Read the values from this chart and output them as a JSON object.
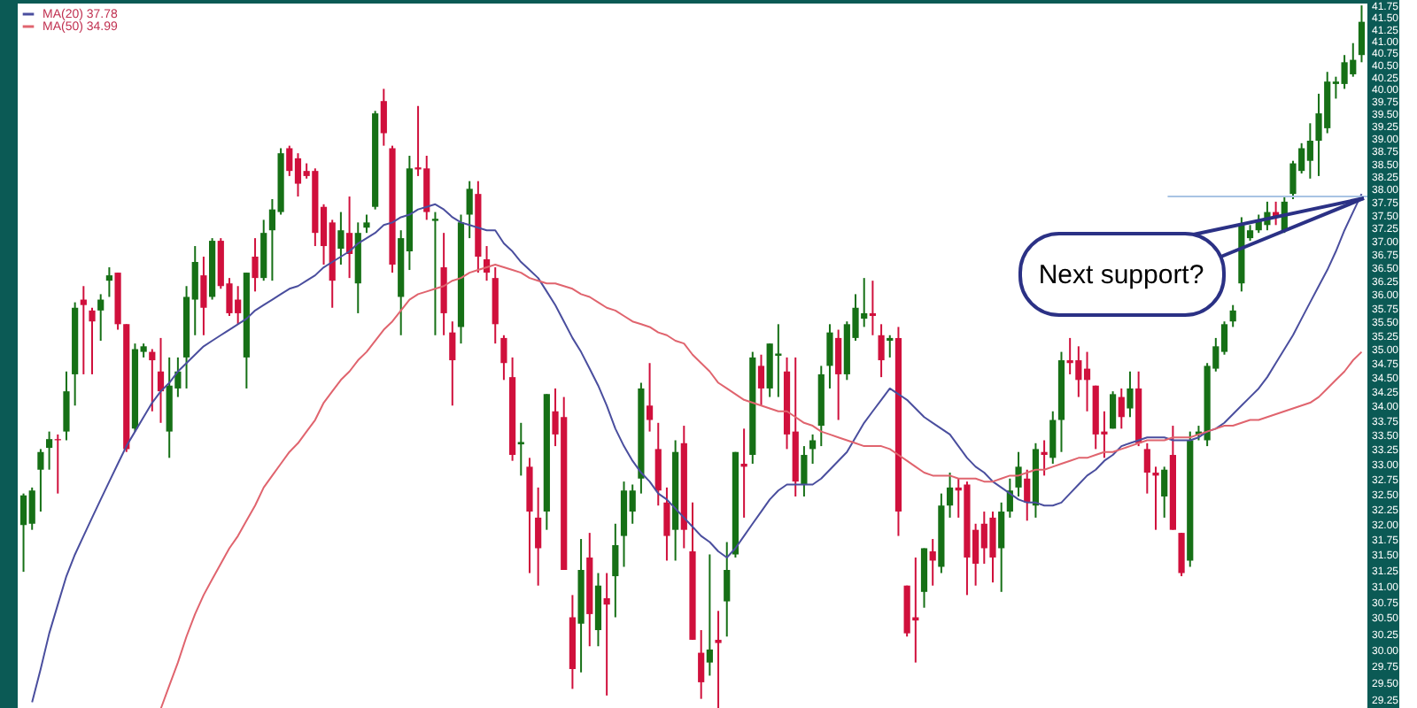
{
  "chart_data": {
    "type": "candlestick",
    "categories": [
      null,
      null,
      null,
      null,
      null,
      null,
      null,
      null,
      null,
      null,
      null,
      null,
      null,
      null,
      null,
      null,
      null,
      null,
      null,
      null,
      null,
      null,
      null,
      null,
      null,
      null,
      null,
      null,
      null,
      null,
      null,
      null,
      null,
      null,
      null,
      null,
      null,
      null,
      null,
      null,
      null,
      null,
      null,
      null,
      null,
      null,
      null,
      null,
      null,
      null,
      null,
      null,
      null,
      null,
      null,
      null,
      null,
      null,
      null,
      null,
      null,
      null,
      null,
      null,
      null,
      null,
      null,
      null,
      null,
      null,
      null,
      null,
      null,
      null,
      null,
      null,
      null,
      null,
      null,
      null,
      null,
      null,
      null,
      null,
      null,
      null,
      null,
      null,
      null,
      null,
      null,
      null,
      null,
      null,
      null,
      null,
      null,
      null,
      null,
      null,
      null,
      null,
      null,
      null,
      null,
      null,
      null,
      null,
      null,
      null,
      null,
      null,
      null,
      null,
      null,
      null,
      null,
      null,
      null,
      null,
      null,
      null,
      null,
      null,
      null,
      null,
      null,
      null,
      null,
      null,
      null,
      null,
      null,
      null,
      null,
      null,
      null,
      null,
      null,
      null,
      null,
      null,
      null,
      null,
      null,
      null,
      null,
      null,
      null,
      null,
      null,
      null,
      null,
      null,
      null,
      null,
      null
    ],
    "ohlc": [
      [
        31.98,
        32.5,
        31.22,
        32.47
      ],
      [
        32.0,
        32.6,
        31.9,
        32.55
      ],
      [
        32.9,
        33.25,
        32.2,
        33.2
      ],
      [
        33.27,
        33.55,
        32.9,
        33.42
      ],
      [
        33.42,
        33.5,
        32.5,
        33.4
      ],
      [
        33.55,
        34.6,
        33.4,
        34.25
      ],
      [
        34.55,
        35.85,
        34.0,
        35.75
      ],
      [
        35.9,
        36.15,
        34.55,
        35.8
      ],
      [
        35.7,
        35.75,
        34.55,
        35.5
      ],
      [
        35.7,
        36.0,
        35.15,
        35.9
      ],
      [
        36.25,
        36.5,
        35.95,
        36.35
      ],
      [
        36.4,
        36.4,
        35.35,
        35.45
      ],
      [
        35.45,
        35.45,
        33.2,
        33.25
      ],
      [
        33.6,
        35.1,
        33.55,
        35.0
      ],
      [
        34.95,
        35.1,
        34.85,
        35.05
      ],
      [
        34.95,
        35.0,
        33.9,
        34.8
      ],
      [
        34.6,
        35.2,
        33.7,
        34.25
      ],
      [
        33.55,
        34.85,
        33.1,
        34.35
      ],
      [
        34.3,
        34.85,
        34.15,
        34.6
      ],
      [
        34.85,
        36.15,
        34.3,
        35.95
      ],
      [
        35.9,
        36.9,
        35.25,
        36.6
      ],
      [
        36.35,
        36.7,
        35.25,
        35.75
      ],
      [
        35.95,
        37.05,
        35.9,
        37.0
      ],
      [
        37.0,
        37.05,
        36.1,
        36.15
      ],
      [
        36.2,
        36.3,
        35.6,
        35.65
      ],
      [
        35.9,
        36.15,
        35.45,
        35.65
      ],
      [
        34.85,
        36.4,
        34.3,
        36.4
      ],
      [
        36.7,
        37.05,
        36.05,
        36.3
      ],
      [
        36.3,
        37.4,
        36.25,
        37.15
      ],
      [
        37.2,
        37.8,
        36.25,
        37.6
      ],
      [
        37.55,
        38.8,
        37.5,
        38.7
      ],
      [
        38.8,
        38.85,
        38.25,
        38.35
      ],
      [
        38.6,
        38.7,
        37.85,
        38.1
      ],
      [
        38.35,
        38.5,
        38.2,
        38.25
      ],
      [
        38.35,
        38.4,
        36.9,
        37.15
      ],
      [
        37.65,
        37.7,
        36.55,
        36.9
      ],
      [
        37.35,
        37.4,
        35.75,
        36.25
      ],
      [
        36.85,
        37.55,
        36.55,
        37.2
      ],
      [
        37.15,
        37.85,
        36.3,
        36.75
      ],
      [
        36.2,
        37.35,
        35.65,
        37.15
      ],
      [
        37.25,
        37.5,
        37.15,
        37.35
      ],
      [
        37.65,
        39.55,
        37.6,
        39.5
      ],
      [
        39.75,
        40.0,
        38.85,
        39.1
      ],
      [
        38.8,
        38.85,
        36.4,
        36.55
      ],
      [
        35.95,
        37.2,
        35.25,
        37.05
      ],
      [
        36.8,
        38.65,
        36.45,
        38.4
      ],
      [
        38.42,
        39.65,
        38.25,
        38.38
      ],
      [
        38.4,
        38.65,
        37.4,
        37.55
      ],
      [
        37.38,
        37.55,
        35.25,
        37.42
      ],
      [
        36.5,
        37.15,
        35.25,
        35.65
      ],
      [
        35.3,
        35.5,
        34.0,
        34.8
      ],
      [
        35.4,
        37.5,
        35.1,
        37.35
      ],
      [
        37.5,
        38.15,
        37.05,
        38.0
      ],
      [
        37.9,
        38.15,
        36.4,
        36.7
      ],
      [
        36.65,
        36.9,
        36.25,
        36.4
      ],
      [
        36.3,
        36.5,
        35.1,
        35.45
      ],
      [
        35.2,
        35.25,
        34.45,
        34.75
      ],
      [
        34.5,
        34.85,
        33.05,
        33.15
      ],
      [
        33.33,
        33.7,
        32.8,
        33.37
      ],
      [
        32.95,
        33.1,
        31.2,
        32.2
      ],
      [
        32.1,
        32.6,
        31.0,
        31.6
      ],
      [
        32.2,
        34.2,
        31.9,
        34.2
      ],
      [
        33.9,
        34.3,
        33.3,
        33.5
      ],
      [
        33.8,
        34.15,
        31.25,
        31.25
      ],
      [
        30.5,
        30.85,
        29.4,
        29.7
      ],
      [
        30.4,
        31.75,
        29.65,
        31.25
      ],
      [
        31.45,
        31.85,
        30.05,
        30.55
      ],
      [
        30.3,
        31.2,
        30.05,
        31.0
      ],
      [
        30.8,
        31.2,
        29.3,
        30.7
      ],
      [
        31.15,
        32.0,
        30.5,
        31.65
      ],
      [
        31.8,
        32.7,
        31.3,
        32.55
      ],
      [
        32.2,
        32.65,
        32.0,
        32.55
      ],
      [
        32.75,
        34.4,
        32.5,
        34.3
      ],
      [
        34.0,
        34.75,
        33.55,
        33.75
      ],
      [
        33.25,
        33.7,
        32.3,
        32.55
      ],
      [
        32.35,
        32.6,
        31.4,
        31.8
      ],
      [
        31.9,
        33.4,
        31.4,
        33.2
      ],
      [
        33.35,
        33.65,
        31.6,
        31.9
      ],
      [
        31.55,
        32.35,
        30.15,
        30.15
      ],
      [
        29.95,
        30.3,
        29.25,
        29.5
      ],
      [
        29.8,
        31.5,
        29.6,
        30.0
      ],
      [
        30.15,
        30.6,
        29.1,
        30.1
      ],
      [
        30.75,
        31.7,
        30.2,
        31.25
      ],
      [
        31.5,
        33.2,
        31.45,
        33.2
      ],
      [
        33.0,
        33.6,
        32.1,
        32.95
      ],
      [
        33.15,
        34.95,
        33.0,
        34.85
      ],
      [
        34.7,
        34.9,
        34.0,
        34.3
      ],
      [
        34.3,
        35.1,
        34.15,
        35.1
      ],
      [
        34.88,
        35.45,
        34.15,
        34.92
      ],
      [
        34.6,
        34.85,
        33.25,
        33.5
      ],
      [
        33.55,
        34.85,
        32.45,
        32.7
      ],
      [
        32.65,
        33.3,
        32.45,
        33.15
      ],
      [
        33.25,
        33.5,
        33.0,
        33.4
      ],
      [
        33.65,
        34.7,
        33.3,
        34.55
      ],
      [
        34.7,
        35.45,
        34.3,
        35.3
      ],
      [
        35.2,
        35.35,
        33.75,
        34.55
      ],
      [
        34.55,
        35.5,
        34.45,
        35.45
      ],
      [
        35.2,
        36.0,
        35.15,
        35.75
      ],
      [
        35.55,
        36.3,
        35.4,
        35.65
      ],
      [
        35.65,
        36.25,
        35.25,
        35.6
      ],
      [
        35.25,
        35.45,
        34.5,
        34.8
      ],
      [
        35.15,
        35.25,
        34.85,
        35.2
      ],
      [
        35.2,
        35.4,
        31.8,
        32.2
      ],
      [
        31.0,
        31.0,
        30.2,
        30.25
      ],
      [
        30.5,
        31.45,
        29.8,
        30.45
      ],
      [
        30.9,
        31.6,
        30.65,
        31.6
      ],
      [
        31.55,
        31.75,
        31.0,
        31.4
      ],
      [
        31.3,
        32.5,
        31.2,
        32.3
      ],
      [
        32.3,
        32.85,
        32.1,
        32.6
      ],
      [
        32.6,
        32.75,
        32.1,
        32.55
      ],
      [
        32.65,
        32.7,
        30.85,
        31.45
      ],
      [
        31.9,
        32.0,
        31.0,
        31.35
      ],
      [
        32.0,
        32.2,
        31.35,
        31.6
      ],
      [
        32.1,
        32.2,
        31.05,
        31.45
      ],
      [
        31.6,
        32.35,
        30.9,
        32.2
      ],
      [
        32.2,
        32.75,
        32.1,
        32.55
      ],
      [
        32.6,
        33.2,
        32.45,
        32.95
      ],
      [
        32.75,
        32.9,
        32.05,
        32.35
      ],
      [
        32.3,
        33.35,
        32.1,
        33.25
      ],
      [
        33.2,
        33.4,
        32.8,
        33.15
      ],
      [
        33.1,
        33.9,
        33.0,
        33.75
      ],
      [
        33.75,
        34.95,
        33.2,
        34.8
      ],
      [
        34.8,
        35.2,
        34.55,
        34.75
      ],
      [
        34.8,
        35.05,
        34.15,
        34.45
      ],
      [
        34.65,
        34.95,
        33.9,
        34.45
      ],
      [
        34.35,
        34.35,
        33.25,
        33.5
      ],
      [
        33.55,
        33.9,
        33.1,
        33.5
      ],
      [
        33.6,
        34.25,
        33.6,
        34.2
      ],
      [
        34.15,
        34.3,
        33.6,
        33.8
      ],
      [
        33.95,
        34.6,
        33.8,
        34.3
      ],
      [
        34.3,
        34.6,
        33.3,
        33.35
      ],
      [
        33.25,
        33.35,
        32.5,
        32.85
      ],
      [
        32.85,
        32.95,
        31.9,
        32.8
      ],
      [
        32.45,
        32.95,
        32.1,
        32.9
      ],
      [
        33.15,
        33.65,
        31.9,
        31.9
      ],
      [
        31.85,
        31.85,
        31.15,
        31.2
      ],
      [
        31.4,
        33.55,
        31.3,
        33.4
      ],
      [
        33.5,
        33.65,
        33.4,
        33.55
      ],
      [
        33.4,
        34.75,
        33.3,
        34.7
      ],
      [
        34.65,
        35.2,
        34.6,
        35.05
      ],
      [
        34.95,
        35.5,
        34.9,
        35.45
      ],
      [
        35.5,
        35.8,
        35.4,
        35.7
      ],
      [
        36.2,
        37.45,
        36.05,
        37.3
      ],
      [
        37.05,
        37.3,
        37.0,
        37.2
      ],
      [
        37.2,
        37.5,
        37.15,
        37.4
      ],
      [
        37.3,
        37.75,
        37.2,
        37.55
      ],
      [
        37.55,
        37.75,
        37.3,
        37.45
      ],
      [
        37.2,
        37.85,
        37.15,
        37.75
      ],
      [
        37.9,
        38.55,
        37.8,
        38.5
      ],
      [
        38.35,
        38.9,
        38.3,
        38.8
      ],
      [
        38.55,
        39.3,
        38.2,
        38.95
      ],
      [
        38.95,
        39.9,
        38.25,
        39.5
      ],
      [
        39.2,
        40.35,
        39.1,
        40.15
      ],
      [
        40.1,
        40.25,
        39.8,
        40.15
      ],
      [
        40.1,
        40.7,
        40.0,
        40.55
      ],
      [
        40.3,
        40.95,
        40.25,
        40.6
      ],
      [
        40.7,
        41.75,
        40.55,
        41.4
      ]
    ],
    "colors": [
      "#167016",
      "#167016",
      "#167016",
      "#167016",
      "#d0103c",
      "#167016",
      "#167016",
      "#d0103c",
      "#d0103c",
      "#167016",
      "#167016",
      "#d0103c",
      "#d0103c",
      "#167016",
      "#167016",
      "#d0103c",
      "#d0103c",
      "#167016",
      "#167016",
      "#167016",
      "#167016",
      "#d0103c",
      "#167016",
      "#d0103c",
      "#d0103c",
      "#d0103c",
      "#167016",
      "#d0103c",
      "#167016",
      "#167016",
      "#167016",
      "#d0103c",
      "#d0103c",
      "#d0103c",
      "#d0103c",
      "#d0103c",
      "#d0103c",
      "#167016",
      "#d0103c",
      "#167016",
      "#167016",
      "#167016",
      "#d0103c",
      "#d0103c",
      "#167016",
      "#167016",
      "#d0103c",
      "#d0103c",
      "#167016",
      "#d0103c",
      "#d0103c",
      "#167016",
      "#167016",
      "#d0103c",
      "#d0103c",
      "#d0103c",
      "#d0103c",
      "#d0103c",
      "#167016",
      "#d0103c",
      "#d0103c",
      "#167016",
      "#d0103c",
      "#d0103c",
      "#d0103c",
      "#167016",
      "#d0103c",
      "#167016",
      "#d0103c",
      "#167016",
      "#167016",
      "#167016",
      "#167016",
      "#d0103c",
      "#d0103c",
      "#d0103c",
      "#167016",
      "#d0103c",
      "#d0103c",
      "#d0103c",
      "#167016",
      "#d0103c",
      "#167016",
      "#167016",
      "#d0103c",
      "#167016",
      "#d0103c",
      "#167016",
      "#167016",
      "#d0103c",
      "#d0103c",
      "#167016",
      "#167016",
      "#167016",
      "#167016",
      "#d0103c",
      "#167016",
      "#167016",
      "#167016",
      "#d0103c",
      "#d0103c",
      "#167016",
      "#d0103c",
      "#d0103c",
      "#d0103c",
      "#167016",
      "#d0103c",
      "#167016",
      "#167016",
      "#d0103c",
      "#d0103c",
      "#d0103c",
      "#d0103c",
      "#d0103c",
      "#167016",
      "#167016",
      "#167016",
      "#d0103c",
      "#167016",
      "#d0103c",
      "#167016",
      "#167016",
      "#d0103c",
      "#d0103c",
      "#d0103c",
      "#d0103c",
      "#d0103c",
      "#167016",
      "#d0103c",
      "#167016",
      "#d0103c",
      "#d0103c",
      "#d0103c",
      "#167016",
      "#d0103c",
      "#d0103c",
      "#167016",
      "#167016",
      "#167016",
      "#167016",
      "#167016",
      "#167016",
      "#167016",
      "#167016",
      "#167016",
      "#167016",
      "#d0103c",
      "#167016",
      "#167016",
      "#167016",
      "#167016",
      "#167016",
      "#167016",
      "#167016",
      "#167016",
      "#167016",
      "#167016"
    ],
    "series": [
      {
        "type": "line",
        "name": "MA(20) 37.78",
        "color": "#4a4e9e",
        "values": [
          null,
          29.2,
          29.7,
          30.25,
          30.7,
          31.15,
          31.5,
          31.8,
          32.1,
          32.4,
          32.7,
          33.0,
          33.3,
          33.55,
          33.8,
          34.05,
          34.25,
          34.4,
          34.6,
          34.75,
          34.9,
          35.05,
          35.15,
          35.25,
          35.35,
          35.45,
          35.55,
          35.7,
          35.8,
          35.9,
          36.0,
          36.1,
          36.15,
          36.25,
          36.35,
          36.5,
          36.6,
          36.7,
          36.8,
          36.95,
          37.05,
          37.15,
          37.3,
          37.35,
          37.45,
          37.5,
          37.6,
          37.65,
          37.7,
          37.6,
          37.45,
          37.35,
          37.3,
          37.25,
          37.2,
          37.2,
          36.95,
          36.8,
          36.6,
          36.45,
          36.3,
          36.05,
          35.8,
          35.5,
          35.2,
          34.95,
          34.65,
          34.35,
          34.0,
          33.6,
          33.3,
          33.05,
          32.85,
          32.7,
          32.5,
          32.4,
          32.25,
          32.1,
          31.95,
          31.8,
          31.7,
          31.55,
          31.45,
          31.6,
          31.8,
          32.0,
          32.2,
          32.4,
          32.55,
          32.65,
          32.65,
          32.65,
          32.65,
          32.75,
          32.9,
          33.05,
          33.2,
          33.45,
          33.7,
          33.9,
          34.1,
          34.3,
          34.2,
          34.1,
          33.95,
          33.8,
          33.7,
          33.6,
          33.5,
          33.3,
          33.1,
          32.95,
          32.85,
          32.7,
          32.6,
          32.5,
          32.4,
          32.35,
          32.35,
          32.3,
          32.3,
          32.35,
          32.5,
          32.65,
          32.8,
          32.9,
          33.05,
          33.15,
          33.3,
          33.35,
          33.4,
          33.45,
          33.45,
          33.45,
          33.4,
          33.4,
          33.4,
          33.45,
          33.55,
          33.6,
          33.7,
          33.85,
          34.0,
          34.15,
          34.3,
          34.5,
          34.75,
          35.0,
          35.25,
          35.55,
          35.85,
          36.15,
          36.45,
          36.8,
          37.2,
          37.55,
          37.9
        ]
      },
      {
        "type": "line",
        "name": "MA(50) 34.99",
        "color": "#e0646e",
        "values": [
          null,
          null,
          null,
          null,
          null,
          null,
          null,
          null,
          null,
          null,
          null,
          null,
          null,
          null,
          null,
          null,
          29.1,
          29.45,
          29.8,
          30.2,
          30.55,
          30.85,
          31.1,
          31.35,
          31.6,
          31.8,
          32.05,
          32.3,
          32.6,
          32.8,
          33.0,
          33.2,
          33.35,
          33.55,
          33.75,
          34.05,
          34.25,
          34.45,
          34.6,
          34.8,
          34.95,
          35.15,
          35.35,
          35.5,
          35.7,
          35.9,
          36.0,
          36.05,
          36.1,
          36.15,
          36.25,
          36.3,
          36.4,
          36.45,
          36.5,
          36.55,
          36.5,
          36.45,
          36.4,
          36.3,
          36.25,
          36.2,
          36.2,
          36.15,
          36.1,
          36.0,
          35.95,
          35.85,
          35.75,
          35.7,
          35.6,
          35.5,
          35.45,
          35.4,
          35.3,
          35.25,
          35.15,
          35.1,
          34.9,
          34.75,
          34.6,
          34.4,
          34.3,
          34.2,
          34.1,
          34.05,
          34.0,
          33.95,
          33.9,
          33.9,
          33.8,
          33.7,
          33.65,
          33.55,
          33.5,
          33.45,
          33.4,
          33.35,
          33.3,
          33.3,
          33.3,
          33.25,
          33.15,
          33.05,
          32.95,
          32.85,
          32.8,
          32.8,
          32.8,
          32.75,
          32.75,
          32.75,
          32.7,
          32.7,
          32.75,
          32.8,
          32.8,
          32.85,
          32.9,
          32.9,
          32.95,
          33.0,
          33.05,
          33.1,
          33.1,
          33.15,
          33.2,
          33.2,
          33.25,
          33.3,
          33.35,
          33.4,
          33.4,
          33.4,
          33.45,
          33.45,
          33.45,
          33.5,
          33.55,
          33.6,
          33.65,
          33.65,
          33.7,
          33.75,
          33.75,
          33.8,
          33.85,
          33.9,
          33.95,
          34.0,
          34.05,
          34.15,
          34.3,
          34.45,
          34.6,
          34.8,
          34.95
        ]
      }
    ],
    "ylim": [
      29.06,
      41.79
    ],
    "yticks": [
      29.25,
      {
        "value": 29.5,
        "label": "29.50"
      },
      29.75,
      {
        "value": 30,
        "label": "30.00"
      },
      30.25,
      {
        "value": 30.5,
        "label": "30.50"
      },
      30.75,
      {
        "value": 31,
        "label": "31.00"
      },
      31.25,
      {
        "value": 31.5,
        "label": "31.50"
      },
      31.75,
      {
        "value": 32,
        "label": "32.00"
      },
      32.25,
      {
        "value": 32.5,
        "label": "32.50"
      },
      32.75,
      {
        "value": 33,
        "label": "33.00"
      },
      33.25,
      {
        "value": 33.5,
        "label": "33.50"
      },
      33.75,
      {
        "value": 34,
        "label": "34.00"
      },
      34.25,
      {
        "value": 34.5,
        "label": "34.50"
      },
      34.75,
      {
        "value": 35,
        "label": "35.00"
      },
      35.25,
      {
        "value": 35.5,
        "label": "35.50"
      },
      35.75,
      {
        "value": 36,
        "label": "36.00"
      },
      36.25,
      {
        "value": 36.5,
        "label": "36.50"
      },
      36.75,
      {
        "value": 37,
        "label": "37.00"
      },
      37.25,
      {
        "value": 37.5,
        "label": "37.50"
      },
      37.75,
      {
        "value": 38,
        "label": "38.00"
      },
      38.25,
      {
        "value": 38.5,
        "label": "38.50"
      },
      38.75,
      {
        "value": 39,
        "label": "39.00"
      },
      39.25,
      {
        "value": 39.5,
        "label": "39.50"
      },
      39.75,
      {
        "value": 40,
        "label": "40.00"
      },
      40.25,
      {
        "value": 40.5,
        "label": "40.50"
      },
      40.75,
      {
        "value": 41,
        "label": "41.00"
      },
      41.25,
      {
        "value": 41.5,
        "label": "41.50"
      },
      41.75
    ],
    "log": true,
    "tick_labels": "y",
    "legend": "top left",
    "ref_lines": [
      {
        "axis": "y",
        "value": 37.85,
        "color": "#a8c4e4"
      }
    ],
    "annotations": [
      "Next support?"
    ]
  }
}
